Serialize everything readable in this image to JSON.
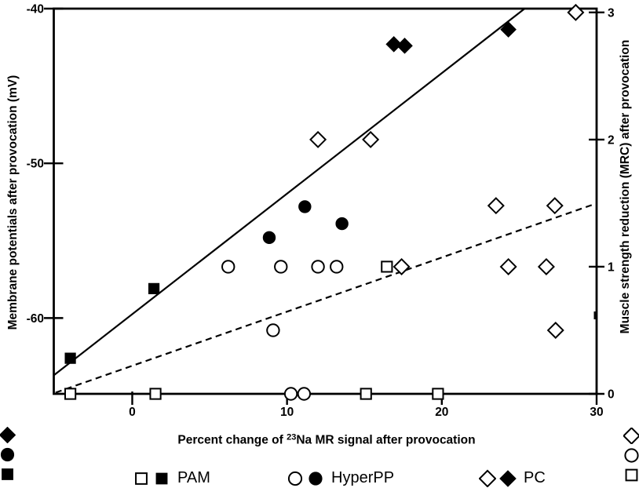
{
  "figure": {
    "legend": [
      {
        "label": "PAM",
        "symbols": [
          "open-square",
          "filled-square"
        ]
      },
      {
        "label": "HyperPP",
        "symbols": [
          "open-circle",
          "filled-circle"
        ]
      },
      {
        "label": "PC",
        "symbols": [
          "open-diamond",
          "filled-diamond"
        ]
      }
    ],
    "margin_symbols_left": [
      "filled-diamond",
      "filled-circle",
      "filled-square"
    ],
    "margin_symbols_right": [
      "open-diamond",
      "open-circle",
      "open-square"
    ],
    "colors": {
      "ink": "#000000",
      "background": "#ffffff"
    }
  },
  "chart_data": {
    "type": "scatter",
    "title": "",
    "xlabel_parts": {
      "prefix": "Percent change of ",
      "superscript": "23",
      "suffix": "Na MR signal after provocation"
    },
    "ylabel_left": "Membrane potentials after provocation (mV)",
    "ylabel_right": "Muscle strength reduction (MRC) after provocation",
    "x_axis": {
      "min": -5.07,
      "max": 30,
      "ticks": [
        0,
        10,
        20,
        30
      ],
      "tick_labels": [
        "0",
        "10",
        "20",
        "30"
      ]
    },
    "y_left": {
      "min": -64.9,
      "max": -40,
      "ticks": [
        -40,
        -50,
        -60
      ],
      "tick_labels": [
        "-40",
        "-50",
        "-60"
      ]
    },
    "y_right": {
      "min": 0,
      "max": 3.03,
      "ticks": [
        3,
        2,
        1,
        0
      ],
      "tick_labels": [
        "3",
        "2",
        "1",
        "0"
      ]
    },
    "grid": false,
    "legend_position": "bottom",
    "series": [
      {
        "name": "PAM membrane potentials",
        "group": "PAM",
        "marker": "filled-square",
        "axis": "left",
        "points": [
          [
            -4.0,
            -62.6
          ],
          [
            1.4,
            -58.1
          ]
        ]
      },
      {
        "name": "PAM MRC reduction",
        "group": "PAM",
        "marker": "open-square",
        "axis": "right",
        "points": [
          [
            -4.0,
            0
          ],
          [
            1.5,
            0
          ],
          [
            15.1,
            0
          ],
          [
            19.75,
            0
          ],
          [
            16.45,
            1.0
          ]
        ]
      },
      {
        "name": "HyperPP membrane potentials",
        "group": "HyperPP",
        "marker": "filled-circle",
        "axis": "left",
        "points": [
          [
            8.85,
            -54.8
          ],
          [
            11.15,
            -52.8
          ],
          [
            13.55,
            -53.9
          ]
        ]
      },
      {
        "name": "HyperPP MRC reduction",
        "group": "HyperPP",
        "marker": "open-circle",
        "axis": "right",
        "points": [
          [
            6.2,
            1.0
          ],
          [
            9.6,
            1.0
          ],
          [
            12.0,
            1.0
          ],
          [
            13.2,
            1.0
          ],
          [
            9.1,
            0.5
          ],
          [
            10.25,
            0
          ],
          [
            11.1,
            0
          ]
        ]
      },
      {
        "name": "PC membrane potentials",
        "group": "PC",
        "marker": "filled-diamond",
        "axis": "left",
        "points": [
          [
            16.9,
            -42.3
          ],
          [
            17.6,
            -42.4
          ],
          [
            24.3,
            -41.35
          ]
        ]
      },
      {
        "name": "PC MRC reduction",
        "group": "PC",
        "marker": "open-diamond",
        "axis": "right",
        "points": [
          [
            12.0,
            2.0
          ],
          [
            15.4,
            2.0
          ],
          [
            17.4,
            1.0
          ],
          [
            23.5,
            1.48
          ],
          [
            24.3,
            1.0
          ],
          [
            26.75,
            1.0
          ],
          [
            27.3,
            1.48
          ],
          [
            27.35,
            0.5
          ],
          [
            28.65,
            3.0
          ]
        ]
      }
    ],
    "lines": [
      {
        "name": "solid regression (membrane potentials, filled symbols)",
        "style": "solid",
        "axis": "left",
        "from": [
          -5.07,
          -63.7
        ],
        "to": [
          25.35,
          -40.0
        ]
      },
      {
        "name": "dashed regression (MRC reduction, open symbols)",
        "style": "dashed",
        "axis": "right",
        "from": [
          -4.95,
          0.01
        ],
        "to": [
          29.8,
          1.49
        ]
      }
    ]
  }
}
